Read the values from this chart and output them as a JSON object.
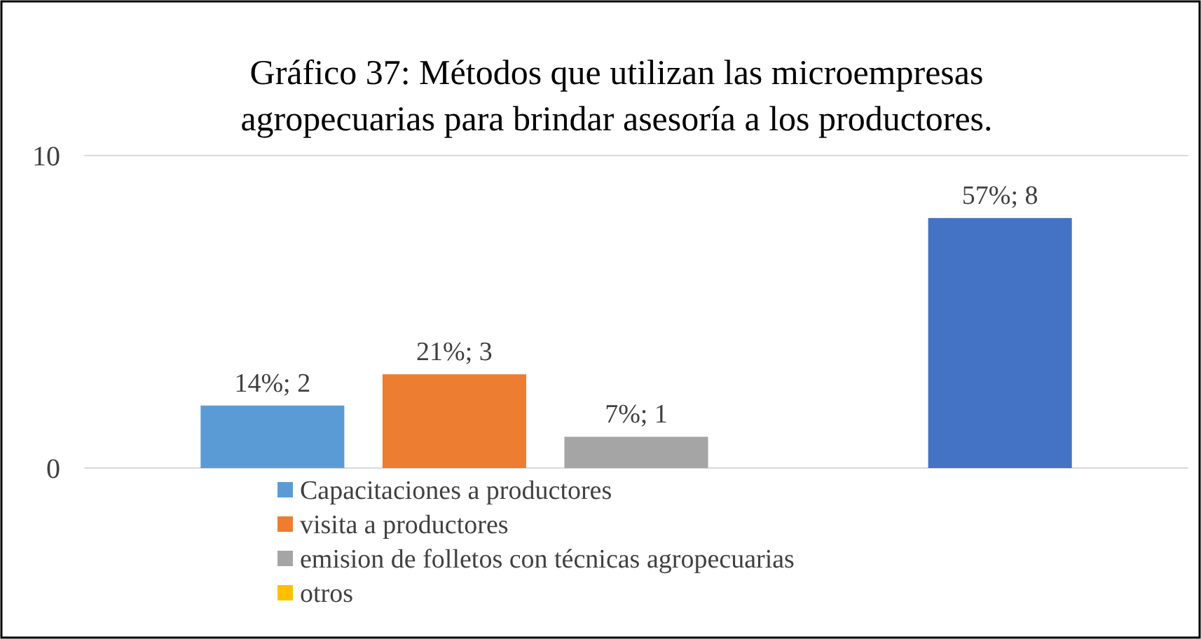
{
  "chart_data": {
    "type": "bar",
    "title": "Gráfico 37: Métodos que utilizan las microempresas agropecuarias para brindar asesoría a los productores.",
    "categories": [
      null
    ],
    "series": [
      {
        "name": "Capacitaciones a productores",
        "color": "#5b9bd5",
        "values": [
          2
        ],
        "value_labels": [
          "14%; 2"
        ]
      },
      {
        "name": "visita a productores",
        "color": "#ed7d31",
        "values": [
          3
        ],
        "value_labels": [
          "21%; 3"
        ]
      },
      {
        "name": "emision de folletos con técnicas agropecuarias",
        "color": "#a5a5a5",
        "values": [
          1
        ],
        "value_labels": [
          "7%; 1"
        ]
      },
      {
        "name": "otros",
        "color": "#ffc000",
        "values": [
          0
        ],
        "value_labels": [
          null
        ]
      },
      {
        "color": "#4472c4",
        "values": [
          8
        ],
        "value_labels": [
          "57%; 8"
        ]
      }
    ],
    "ylim": [
      0,
      10
    ],
    "yticks": [
      0,
      10
    ],
    "grid": "y",
    "legend": "bottom"
  }
}
